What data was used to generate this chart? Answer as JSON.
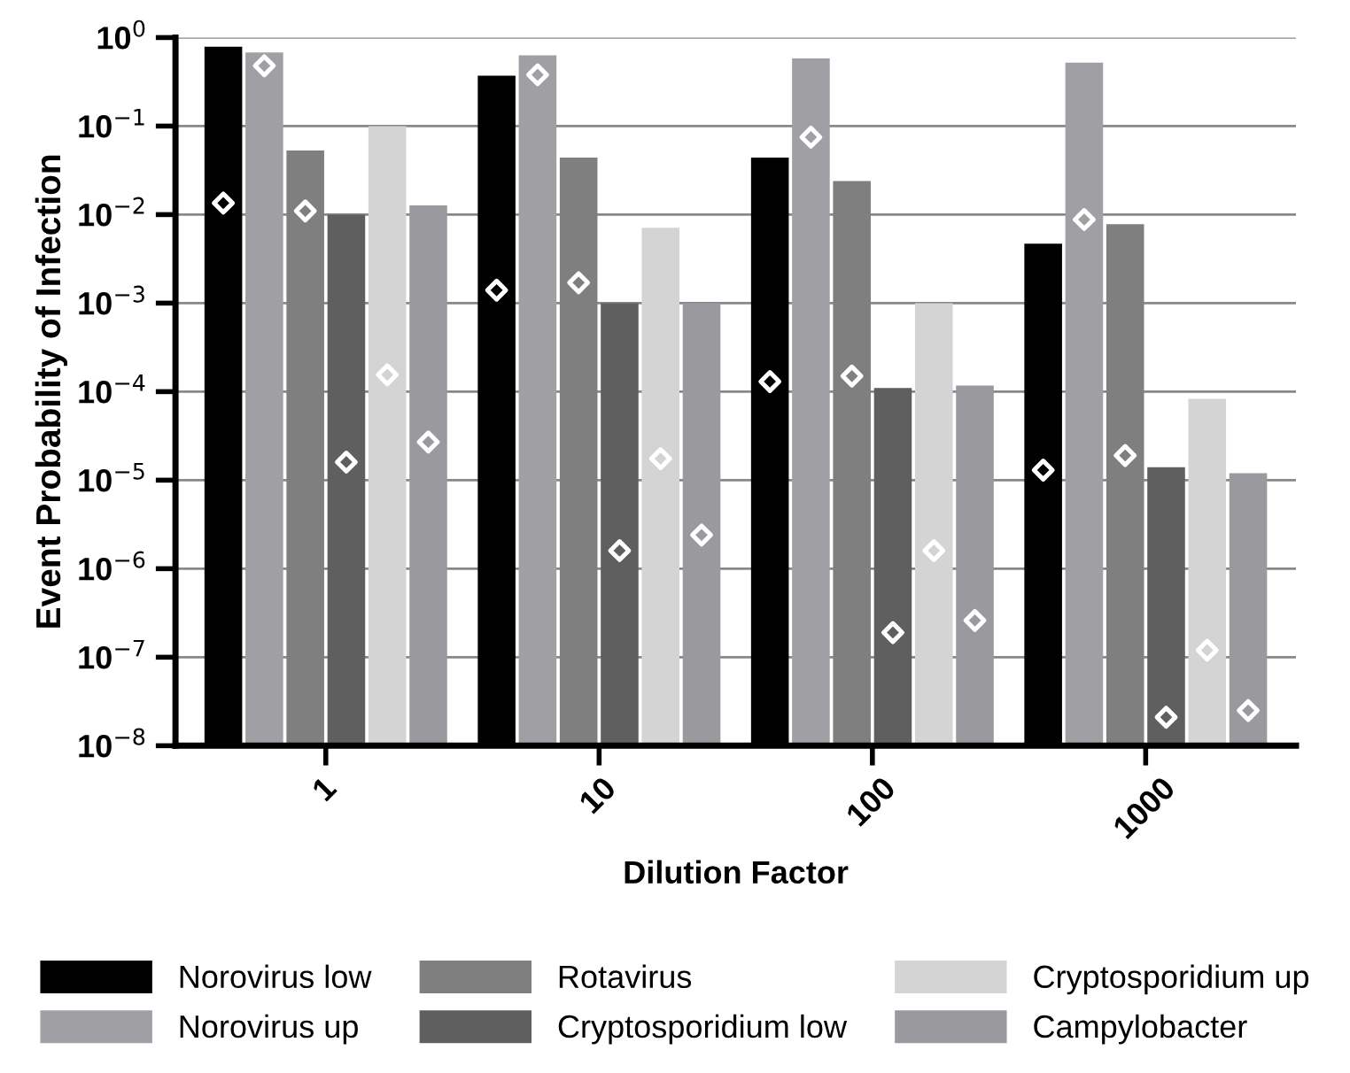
{
  "chart_data": {
    "type": "bar",
    "xlabel": "Dilution Factor",
    "ylabel": "Event Probability of Infection",
    "categories": [
      "1",
      "10",
      "100",
      "1000"
    ],
    "log": "y",
    "ylim": [
      1e-08,
      1
    ],
    "grid": "y",
    "legend": "bottom",
    "yticks": [
      {
        "value": 1e-08,
        "label": "10$^{−8}$"
      },
      {
        "value": 1e-07,
        "label": "10$^{−7}$"
      },
      {
        "value": 1e-06,
        "label": "10$^{−6}$"
      },
      {
        "value": 1e-05,
        "label": "10$^{−5}$"
      },
      {
        "value": 0.0001,
        "label": "10$^{−4}$"
      },
      {
        "value": 0.001,
        "label": "10$^{−3}$"
      },
      {
        "value": 0.01,
        "label": "10$^{−2}$"
      },
      {
        "value": 0.1,
        "label": "10$^{−1}$"
      },
      {
        "value": 1,
        "label": "10$^{0}$"
      }
    ],
    "series": [
      {
        "name": "Norovirus low",
        "color": "#000000",
        "values": [
          0.79,
          0.37,
          0.044,
          0.0047
        ]
      },
      {
        "name": "Norovirus up",
        "color": "#a0a0a4",
        "values": [
          0.68,
          0.63,
          0.58,
          0.52
        ]
      },
      {
        "name": "Rotavirus",
        "color": "#7f7f7f",
        "values": [
          0.053,
          0.044,
          0.024,
          0.0078
        ]
      },
      {
        "name": "Cryptosporidium low",
        "color": "#5f5f5f",
        "values": [
          0.01,
          0.001,
          0.00011,
          1.4e-05
        ]
      },
      {
        "name": "Cryptosporidium up",
        "color": "#d4d4d4",
        "values": [
          0.1,
          0.0071,
          0.001,
          8.3e-05
        ]
      },
      {
        "name": "Campylobacter",
        "color": "#9a9a9e",
        "values": [
          0.0127,
          0.001,
          0.000117,
          1.2e-05
        ]
      },
      {
        "type": "scatter",
        "marker": "diamond",
        "color": "#ffffff",
        "values": [
          0.0135,
          0.0014,
          0.00013,
          1.3e-05
        ]
      },
      {
        "type": "scatter",
        "marker": "diamond",
        "color": "#ffffff",
        "values": [
          0.48,
          0.38,
          0.075,
          0.0088
        ]
      },
      {
        "type": "scatter",
        "marker": "diamond",
        "color": "#ffffff",
        "values": [
          0.011,
          0.0017,
          0.00015,
          1.9e-05
        ]
      },
      {
        "type": "scatter",
        "marker": "diamond",
        "color": "#ffffff",
        "values": [
          1.6e-05,
          1.6e-06,
          1.9e-07,
          2.1e-08
        ]
      },
      {
        "type": "scatter",
        "marker": "diamond",
        "color": "#ffffff",
        "values": [
          0.000155,
          1.75e-05,
          1.6e-06,
          1.2e-07
        ]
      },
      {
        "type": "scatter",
        "marker": "diamond",
        "color": "#ffffff",
        "values": [
          2.7e-05,
          2.4e-06,
          2.6e-07,
          2.5e-08
        ]
      }
    ]
  }
}
